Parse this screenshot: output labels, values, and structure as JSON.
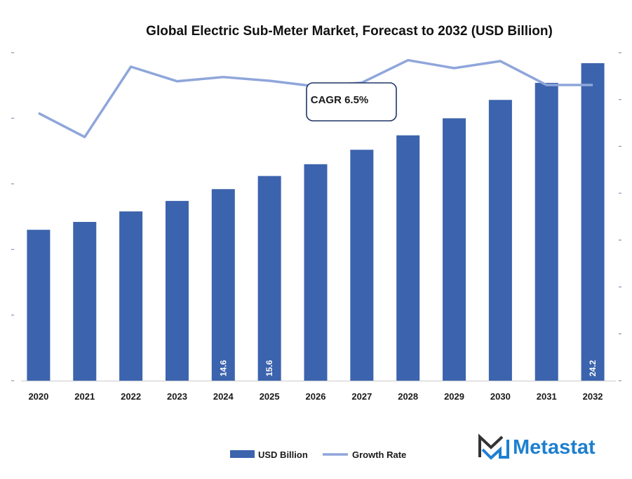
{
  "chart_data": {
    "type": "bar",
    "title": "Global Electric Sub-Meter Market, Forecast to 2032 (USD Billion)",
    "xlabel": "",
    "ylabel": "",
    "categories": [
      "2020",
      "2021",
      "2022",
      "2023",
      "2024",
      "2025",
      "2026",
      "2027",
      "2028",
      "2029",
      "2030",
      "2031",
      "2032"
    ],
    "series": [
      {
        "name": "USD Billion",
        "type": "bar",
        "axis": "left",
        "color": "#3c63ad",
        "values": [
          11.5,
          12.1,
          12.9,
          13.7,
          14.6,
          15.6,
          16.5,
          17.6,
          18.7,
          20.0,
          21.4,
          22.7,
          24.2
        ],
        "data_labels": {
          "2024": "14.6",
          "2025": "15.6",
          "2032": "24.2"
        }
      },
      {
        "name": "Growth Rate",
        "type": "line",
        "axis": "right",
        "color": "#8fa6da",
        "values": [
          5.71,
          5.2,
          6.7,
          6.39,
          6.48,
          6.4,
          6.28,
          6.36,
          6.84,
          6.67,
          6.82,
          6.31,
          6.31
        ]
      }
    ],
    "ylim": [
      0,
      25
    ],
    "y_ticks": [
      0,
      5,
      10,
      15,
      20,
      25
    ],
    "y2lim": [
      0,
      7
    ],
    "y2_ticks": [
      0,
      1,
      2,
      3,
      4,
      5,
      6,
      7
    ],
    "tick_labels_visible": false,
    "grid": false,
    "legend": {
      "position": "bottom-center",
      "entries": [
        "USD Billion",
        "Growth Rate"
      ]
    },
    "annotations": [
      {
        "text": "CAGR 6.5%",
        "position": "top-center"
      }
    ]
  },
  "branding": {
    "logo_text": "Metastat"
  }
}
